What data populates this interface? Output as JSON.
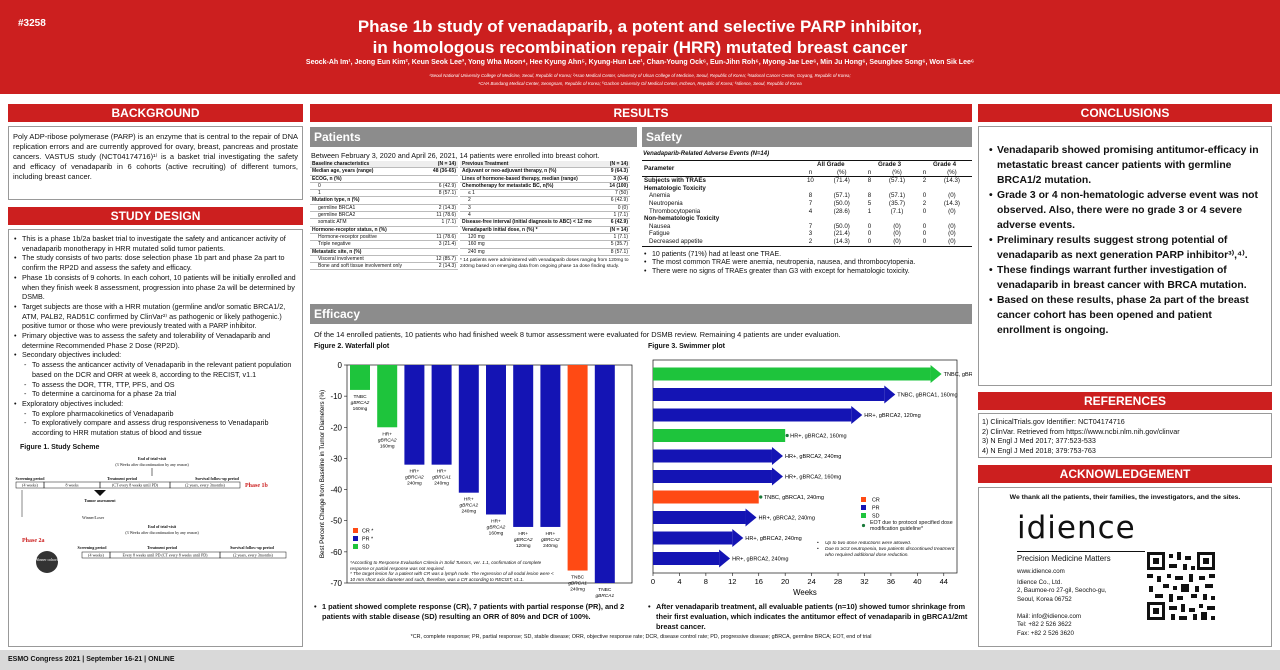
{
  "header": {
    "poster_id": "#3258",
    "title_line1": "Phase 1b study of venadaparib, a potent and selective PARP inhibitor,",
    "title_line2": "in homologous recombination repair (HRR) mutated breast cancer",
    "authors": "Seock-Ah Im¹, Jeong Eun Kim², Keun Seok Lee³, Yong Wha Moon⁴, Hee Kyung Ahn⁵, Kyung-Hun Lee¹, Chan-Young Ock⁶, Eun-Jihn Roh⁶, Myong-Jae Lee⁶, Min Ju Hong⁶, Seunghee Song⁶, Won Sik Lee⁶",
    "affil1": "¹Seoul National University College of Medicine, Seoul, Republic of Korea; ²Asan Medical Center, University of Ulsan College of Medicine, Seoul, Republic of Korea; ³National Cancer Center, Goyang, Republic of Korea;",
    "affil2": "⁴CHA Bundang Medical Center, Seongnam, Republic of Korea; ⁵Gachon University Gil Medical Center, Incheon, Republic of Korea; ⁶Idience, Seoul, Republic of Korea"
  },
  "background": {
    "heading": "BACKGROUND",
    "text": "Poly ADP-ribose polymerase (PARP) is an enzyme that is central to the repair of DNA replication errors and are currently approved for ovary, breast, pancreas and prostate cancers. VASTUS study (NCT04174716)¹⁾ is a basket trial investigating the safety and efficacy of venadaparib in 6 cohorts (active recruiting) of different tumors, including breast cancer."
  },
  "study_design": {
    "heading": "STUDY DESIGN",
    "bullets": [
      {
        "t": "This is a phase 1b/2a basket trial to investigate the safety and anticancer activity of venadaparib monotherapy in HRR mutated solid tumor patients.",
        "d": false
      },
      {
        "t": "The study consists of two parts: dose selection phase 1b part and phase 2a part to confirm the RP2D and assess the safety and efficacy.",
        "d": false
      },
      {
        "t": "Phase 1b consists of 9 cohorts. In each cohort, 10 patients will be initially enrolled and when they finish week 8 assessment, progression into phase 2a will be determined by DSMB.",
        "d": false
      },
      {
        "t": "Target subjects are those with a HRR mutation (germline and/or somatic BRCA1/2, ATM, PALB2, RAD51C confirmed by ClinVar²⁾ as pathogenic or likely pathogenic.) positive tumor or those who were previously treated with a PARP inhibitor.",
        "d": false
      },
      {
        "t": "Primary objective was to assess the safety and tolerability of Venadaparib and determine Recommended Phase 2 Dose (RP2D).",
        "d": false
      },
      {
        "t": "Secondary objectives included:",
        "d": false
      },
      {
        "t": "To assess the anticancer activity of Venadaparib in the relevant patient population based on the DCR and ORR at week 8, according to the RECIST, v1.1",
        "d": true
      },
      {
        "t": "To assess the DOR, TTR, TTP, PFS, and OS",
        "d": true
      },
      {
        "t": "To determine a carcinoma for a phase 2a trial",
        "d": true
      },
      {
        "t": "Exploratory objectives included:",
        "d": false
      },
      {
        "t": "To explore pharmacokinetics of Venadaparib",
        "d": true
      },
      {
        "t": "To exploratively compare and assess drug responsiveness to Venadaparib according to HRR mutation status of blood and tissue",
        "d": true
      }
    ],
    "figure_caption": "Figure 1. Study Scheme",
    "scheme": {
      "end_visit": "End of trial-visit",
      "end_visit_sub": "(3 Weeks after discontinuation by any reason)",
      "screening": "Screening period",
      "treatment": "Treatment period",
      "survival": "Survival follow-up period",
      "s_weeks": "(4 weeks)",
      "s_8weeks": "8 weeks",
      "every8": "(CT every 8 weeks until PD)",
      "two_years": "(2 years, every 3months)",
      "tumor": "Tumor assessment",
      "phase1b": "Phase 1b",
      "winner": "Winner/Loser",
      "phase2a": "Phase 2a",
      "cohorts": "Winner cohorts",
      "every8b": "Every 8 weeks until PD (CT every 8 weeks until PD)",
      "two_years_b": "(2 years, every 3months)"
    }
  },
  "results": {
    "heading": "RESULTS",
    "patients_heading": "Patients",
    "patients_intro": "Between February 3, 2020 and April 26, 2021, 14 patients were enrolled into breast cohort.",
    "baseline_table": {
      "col1": "Baseline characteristics",
      "col2": "(N = 14)",
      "rows": [
        {
          "k": "Median age, years (range)",
          "v": "48 (36-65)",
          "h": true
        },
        {
          "k": "ECOG, n (%)",
          "v": "",
          "h": true
        },
        {
          "k": "0",
          "v": "6 (42.9)",
          "h": false
        },
        {
          "k": "1",
          "v": "8 (57.1)",
          "h": false
        },
        {
          "k": "Mutation type, n (%)",
          "v": "",
          "h": true
        },
        {
          "k": "germline BRCA1",
          "v": "2 (14.3)",
          "h": false
        },
        {
          "k": "germline BRCA2",
          "v": "11 (78.6)",
          "h": false
        },
        {
          "k": "somatic ATM",
          "v": "1 (7.1)",
          "h": false
        },
        {
          "k": "Hormone-receptor status, n (%)",
          "v": "",
          "h": true
        },
        {
          "k": "Hormone-receptor positive",
          "v": "11 (78.6)",
          "h": false
        },
        {
          "k": "Triple negative",
          "v": "3 (21.4)",
          "h": false
        },
        {
          "k": "Metastatic site, n (%)",
          "v": "",
          "h": true
        },
        {
          "k": "Visceral involvement",
          "v": "12 (85.7)",
          "h": false
        },
        {
          "k": "Bone and soft tissue involvement only",
          "v": "2 (14.3)",
          "h": false
        }
      ]
    },
    "prev_table": {
      "col1": "Previous Treatment",
      "col2": "(N = 14)",
      "rows": [
        {
          "k": "Adjuvant or neo-adjuvant therapy, n (%)",
          "v": "9 (64.3)",
          "h": true
        },
        {
          "k": "Lines of hormone-based therapy, median (range)",
          "v": "3 (0-4)",
          "h": true
        },
        {
          "k": "Chemotherapy for metastatic BC, n(%)",
          "v": "14 (100)",
          "h": true
        },
        {
          "k": "≤ 1",
          "v": "7 (50)",
          "h": false
        },
        {
          "k": "2",
          "v": "6 (42.9)",
          "h": false
        },
        {
          "k": "3",
          "v": "0 (0)",
          "h": false
        },
        {
          "k": "4",
          "v": "1 (7.1)",
          "h": false
        },
        {
          "k": "Disease-free interval (initial diagnosis to ABC) < 12 mo",
          "v": "6 (42.9)",
          "h": true
        },
        {
          "k": "Venadaparib initial dose, n (%) *",
          "v": "(N = 14)",
          "h": true
        },
        {
          "k": "120 mg",
          "v": "1 (7.1)",
          "h": false
        },
        {
          "k": "160 mg",
          "v": "5 (35.7)",
          "h": false
        },
        {
          "k": "240 mg",
          "v": "8 (57.1)",
          "h": false
        }
      ],
      "note": "* 14 patients were administered with venadaparib doses ranging from 120mg to 240mg based on emerging data from ongoing phase 1a dose finding study."
    },
    "safety_heading": "Safety",
    "safety_caption": "Venadaparib-Related Adverse Events (N=14)",
    "safety_table": {
      "param": "Parameter",
      "groups": [
        "All Grade",
        "Grade 3",
        "Grade 4"
      ],
      "n": "n",
      "pct": "(%)",
      "rows": [
        {
          "k": "Subjects with TRAEs",
          "v": [
            "10",
            "(71.4)",
            "8",
            "(57.1)",
            "2",
            "(14.3)"
          ],
          "h": true
        },
        {
          "k": "Hematologic Toxicity",
          "v": [
            "",
            "",
            "",
            "",
            "",
            ""
          ],
          "h": true
        },
        {
          "k": "Anemia",
          "v": [
            "8",
            "(57.1)",
            "8",
            "(57.1)",
            "0",
            "(0)"
          ],
          "h": false
        },
        {
          "k": "Neutropenia",
          "v": [
            "7",
            "(50.0)",
            "5",
            "(35.7)",
            "2",
            "(14.3)"
          ],
          "h": false
        },
        {
          "k": "Thrombocytopenia",
          "v": [
            "4",
            "(28.6)",
            "1",
            "(7.1)",
            "0",
            "(0)"
          ],
          "h": false
        },
        {
          "k": "Non-hematologic Toxicity",
          "v": [
            "",
            "",
            "",
            "",
            "",
            ""
          ],
          "h": true
        },
        {
          "k": "Nausea",
          "v": [
            "7",
            "(50.0)",
            "0",
            "(0)",
            "0",
            "(0)"
          ],
          "h": false
        },
        {
          "k": "Fatigue",
          "v": [
            "3",
            "(21.4)",
            "0",
            "(0)",
            "0",
            "(0)"
          ],
          "h": false
        },
        {
          "k": "Decreased appetite",
          "v": [
            "2",
            "(14.3)",
            "0",
            "(0)",
            "0",
            "(0)"
          ],
          "h": false
        }
      ]
    },
    "safety_bullets": [
      "10 patients (71%) had at least one TRAE.",
      "The most common TRAE were anemia, neutropenia, nausea, and thrombocytopenia.",
      "There were no signs of TRAEs greater than G3 with except for hematologic toxicity."
    ],
    "efficacy_heading": "Efficacy",
    "efficacy_intro": "Of the 14 enrolled patients, 10 patients who had finished week 8 tumor assessment were evaluated for DSMB review. Remaining 4 patients are under evaluation.",
    "fig2_caption": "Figure 2. Waterfall plot",
    "fig3_caption": "Figure 3. Swimmer plot",
    "waterfall_note1": "*According to Response Evaluation Criteria in Solid Tumors, ver. 1.1, confirmation of complete response or partial response was not required.",
    "waterfall_note2": "* The target lesion for a patient with CR was a lymph node. The regression of all nodal lesion were < 10 mm short axis diameter and such, therefore, was a CR according to RECIST, v1.1.",
    "swimmer_notes": [
      "Up to two dose reductions were allowed.",
      "Due to ≥G3 neutropenia, two patients discontinued treatment who required additional dose reduction."
    ],
    "efficacy_bullet_left": "1 patient showed complete response (CR), 7 patients with partial response (PR), and 2 patients with stable disease (SD) resulting an ORR of 80% and DCR of 100%.",
    "efficacy_bullet_right": "After venadaparib treatment, all evaluable patients (n=10) showed tumor shrinkage from their first evaluation, which indicates the antitumor effect of venadaparib in gBRCA1/2mt breast cancer.",
    "abbrev": "*CR, complete response; PR, partial response; SD, stable disease; ORR, objective response rate; DCR, disease control rate; PD, progressive disease; gBRCA, germline BRCA; EOT, end of trial"
  },
  "chart_data": [
    {
      "type": "bar",
      "title": "",
      "ylabel": "Best Percent Change from Baseline in Tumor Diameters (%)",
      "ylim": [
        -70,
        0
      ],
      "yticks": [
        0,
        -10,
        -20,
        -30,
        -40,
        -50,
        -60,
        -70
      ],
      "categories": [
        "TNBC gBRCA2 160mg",
        "HR+ gBRCA2 160mg",
        "HR+ gBRCA2 240mg",
        "HR+ gBRCA1 240mg",
        "HR+ gBRCA2 240mg",
        "HR+ gBRCA2 160mg",
        "HR+ gBRCA2 120mg",
        "HR+ gBRCA2 240mg",
        "TNBC gBRCA1 240mg",
        "TNBC gBRCA1 160mg"
      ],
      "values": [
        -8,
        -20,
        -32,
        -32,
        -41,
        -48,
        -52,
        -52,
        -66,
        -70
      ],
      "response": [
        "SD",
        "SD",
        "PR",
        "PR",
        "PR",
        "PR",
        "PR",
        "PR",
        "CR",
        "PR"
      ],
      "legend": [
        "CR *",
        "PR *",
        "SD"
      ],
      "colors": {
        "CR": "#ff4a14",
        "PR": "#1414b4",
        "SD": "#1ec43c"
      }
    },
    {
      "type": "bar",
      "orientation": "horizontal",
      "title": "",
      "xlabel": "Weeks",
      "xlim": [
        0,
        46
      ],
      "xticks": [
        0,
        4,
        8,
        12,
        16,
        20,
        24,
        28,
        32,
        36,
        40,
        44
      ],
      "categories": [
        "TNBC, gBRCA2, 160mg",
        "TNBC, gBRCA1, 160mg",
        "HR+, gBRCA2, 120mg",
        "HR+, gBRCA2, 160mg",
        "HR+, gBRCA2, 240mg",
        "HR+, gBRCA2, 160mg",
        "TNBC, gBRCA1, 240mg",
        "HR+, gBRCA2, 240mg",
        "HR+, gBRCA2, 240mg",
        "HR+, gBRCA2, 240mg"
      ],
      "values": [
        42,
        35,
        30,
        20,
        18,
        18,
        16,
        14,
        12,
        10
      ],
      "response": [
        "SD",
        "PR",
        "PR",
        "SD",
        "PR",
        "PR",
        "CR",
        "PR",
        "PR",
        "PR"
      ],
      "ongoing": [
        true,
        true,
        true,
        false,
        true,
        true,
        false,
        true,
        true,
        true
      ],
      "legend": [
        "CR",
        "PR",
        "SD",
        "EOT due to protocol specified dose modification guideline*"
      ]
    }
  ],
  "conclusions": {
    "heading": "CONCLUSIONS",
    "bullets": [
      "Venadaparib showed promising antitumor-efficacy in metastatic breast cancer patients with germline BRCA1/2 mutation.",
      "Grade 3 or 4 non-hematologic adverse event was not observed. Also, there were no grade 3 or 4 severe adverse events.",
      "Preliminary results suggest strong potential of venadaparib as next generation PARP inhibitor³⁾,⁴⁾.",
      "These findings warrant further investigation of venadaparib in breast cancer with BRCA mutation.",
      "Based on these results, phase 2a part of the breast cancer cohort has been opened and patient enrollment is ongoing."
    ]
  },
  "references": {
    "heading": "REFERENCES",
    "items": [
      "1) ClinicalTrials.gov Identifier: NCT04174716",
      "2) ClinVar. Retrieved from https://www.ncbi.nlm.nih.gov/clinvar",
      "3) N Engl J Med 2017; 377:523-533",
      "4) N Engl J Med 2018; 379:753-763"
    ]
  },
  "acknowledgement": {
    "heading": "ACKNOWLEDGEMENT",
    "text": "We thank all the patients, their families, the investigators, and the sites.",
    "logo": "idience",
    "tagline": "Precision Medicine Matters",
    "web": "www.idience.com",
    "company": "Idience Co., Ltd.",
    "addr1": "2, Baumoe-ro 27-gil, Seocho-gu,",
    "addr2": "Seoul, Korea 06752",
    "mail": "Mail: info@idience.com",
    "tel": "Tel: +82 2 526 3622",
    "fax": "Fax: +82 2 526 3620"
  },
  "footer": "ESMO Congress 2021 | September 16-21 | ONLINE"
}
